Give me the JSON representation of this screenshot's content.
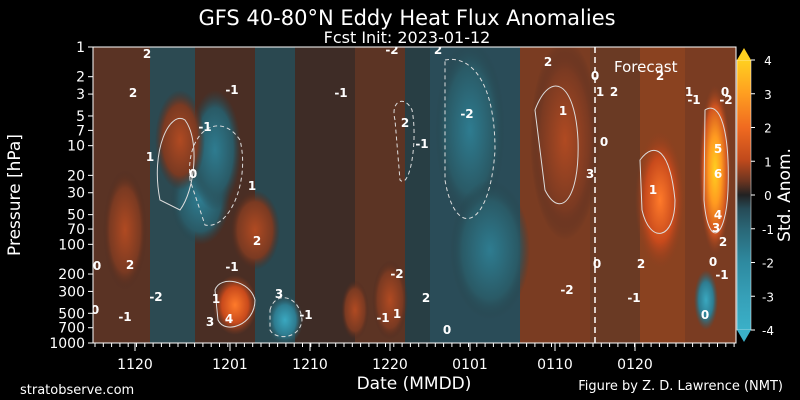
{
  "chart_data": {
    "type": "heatmap",
    "title": "GFS 40-80°N Eddy Heat Flux Anomalies",
    "subtitle": "Fcst Init: 2023-01-12",
    "xlabel": "Date (MMDD)",
    "ylabel": "Pressure [hPa]",
    "x_ticks": [
      "1120",
      "1201",
      "1210",
      "1220",
      "0101",
      "0110",
      "0120"
    ],
    "y_ticks": [
      1,
      2,
      3,
      5,
      7,
      10,
      20,
      30,
      50,
      70,
      100,
      200,
      300,
      500,
      700,
      1000
    ],
    "y_scale": "log",
    "y_inverted": true,
    "forecast_label": "Forecast",
    "forecast_start": "0112",
    "colorbar": {
      "label": "Std. Anom.",
      "ticks": [
        4,
        3,
        2,
        1,
        0,
        -1,
        -2,
        -3,
        -4
      ],
      "range": [
        -4,
        4
      ],
      "colors": [
        "#3ab0c8",
        "#2e8aa0",
        "#2a6878",
        "#264a56",
        "#222222",
        "#5a3020",
        "#8a3c1e",
        "#c04a1c",
        "#f06a20",
        "#ffa020",
        "#ffd020"
      ]
    },
    "contour_labels": [
      "0",
      "2",
      "-2",
      "2",
      "2",
      "0",
      "1",
      "2",
      "2",
      "1",
      "-1",
      "0",
      "-2",
      "2",
      "-1",
      "1",
      "0",
      "-1",
      "-1",
      "2",
      "-1",
      "1",
      "0",
      "3",
      "1",
      "5",
      "6",
      "4",
      "3",
      "2",
      "-2",
      "1",
      "2",
      "2",
      "-1",
      "0",
      "0",
      "-1",
      "0",
      "-2",
      "-1",
      "2",
      "0",
      "-1",
      "-2",
      "2",
      "1",
      "4",
      "3",
      "3",
      "-2",
      "-1",
      "1",
      "-1",
      "0",
      "0"
    ],
    "features": [
      {
        "date": "1201",
        "p_top": 300,
        "p_bot": 1000,
        "anom": 4
      },
      {
        "date": "0116",
        "p_top": 2,
        "p_bot": 100,
        "anom": 3
      },
      {
        "date": "0125",
        "p_top": 5,
        "p_bot": 100,
        "anom": 6
      }
    ]
  },
  "footer": {
    "left": "stratobserve.com",
    "right": "Figure by Z. D. Lawrence (NMT)"
  }
}
